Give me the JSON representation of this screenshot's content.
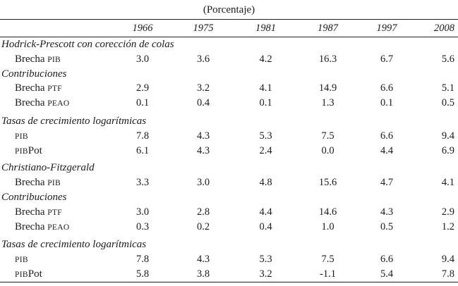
{
  "page": {
    "title": "(Porcentaje)"
  },
  "table": {
    "columns": [
      "1966",
      "1975",
      "1981",
      "1987",
      "1997",
      "2008"
    ],
    "rows": [
      {
        "type": "section",
        "label": "Hodrick-Prescott con corección de colas"
      },
      {
        "type": "data",
        "label_parts": [
          {
            "text": "Brecha ",
            "caps": false
          },
          {
            "text": "PIB",
            "caps": true
          }
        ],
        "values": [
          "3.0",
          "3.6",
          "4.2",
          "16.3",
          "6.7",
          "5.6"
        ]
      },
      {
        "type": "section",
        "label": "Contribuciones"
      },
      {
        "type": "data",
        "label_parts": [
          {
            "text": "Brecha ",
            "caps": false
          },
          {
            "text": "PTF",
            "caps": true
          }
        ],
        "values": [
          "2.9",
          "3.2",
          "4.1",
          "14.9",
          "6.6",
          "5.1"
        ]
      },
      {
        "type": "data",
        "label_parts": [
          {
            "text": "Brecha ",
            "caps": false
          },
          {
            "text": "PEAO",
            "caps": true
          }
        ],
        "values": [
          "0.1",
          "0.4",
          "0.1",
          "1.3",
          "0.1",
          "0.5"
        ]
      },
      {
        "type": "section",
        "label": "Tasas de crecimiento logarítmicas",
        "extra_space": "lg"
      },
      {
        "type": "data",
        "label_parts": [
          {
            "text": "PIB",
            "caps": true
          }
        ],
        "values": [
          "7.8",
          "4.3",
          "5.3",
          "7.5",
          "6.6",
          "9.4"
        ]
      },
      {
        "type": "data",
        "label_parts": [
          {
            "text": "PIB",
            "caps": true
          },
          {
            "text": "Pot",
            "caps": false
          }
        ],
        "values": [
          "6.1",
          "4.3",
          "2.4",
          "0.0",
          "4.4",
          "6.9"
        ]
      },
      {
        "type": "section",
        "label": "Christiano-Fitzgerald",
        "extra_space": "sm"
      },
      {
        "type": "data",
        "label_parts": [
          {
            "text": "Brecha ",
            "caps": false
          },
          {
            "text": "PIB",
            "caps": true
          }
        ],
        "values": [
          "3.3",
          "3.0",
          "4.8",
          "15.6",
          "4.7",
          "4.1"
        ]
      },
      {
        "type": "section",
        "label": "Contribuciones"
      },
      {
        "type": "data",
        "label_parts": [
          {
            "text": "Brecha ",
            "caps": false
          },
          {
            "text": "PTF",
            "caps": true
          }
        ],
        "values": [
          "3.0",
          "2.8",
          "4.4",
          "14.6",
          "4.3",
          "2.9"
        ]
      },
      {
        "type": "data",
        "label_parts": [
          {
            "text": "Brecha ",
            "caps": false
          },
          {
            "text": "PEAO",
            "caps": true
          }
        ],
        "values": [
          "0.3",
          "0.2",
          "0.4",
          "1.0",
          "0.5",
          "1.2"
        ]
      },
      {
        "type": "section",
        "label": "Tasas de crecimiento logarítmicas",
        "extra_space": "lg"
      },
      {
        "type": "data",
        "label_parts": [
          {
            "text": "PIB",
            "caps": true
          }
        ],
        "values": [
          "7.8",
          "4.3",
          "5.3",
          "7.5",
          "6.6",
          "9.4"
        ]
      },
      {
        "type": "data",
        "label_parts": [
          {
            "text": "PIB",
            "caps": true
          },
          {
            "text": "Pot",
            "caps": false
          }
        ],
        "values": [
          "5.8",
          "3.8",
          "3.2",
          "-1.1",
          "5.4",
          "7.8"
        ]
      }
    ]
  }
}
